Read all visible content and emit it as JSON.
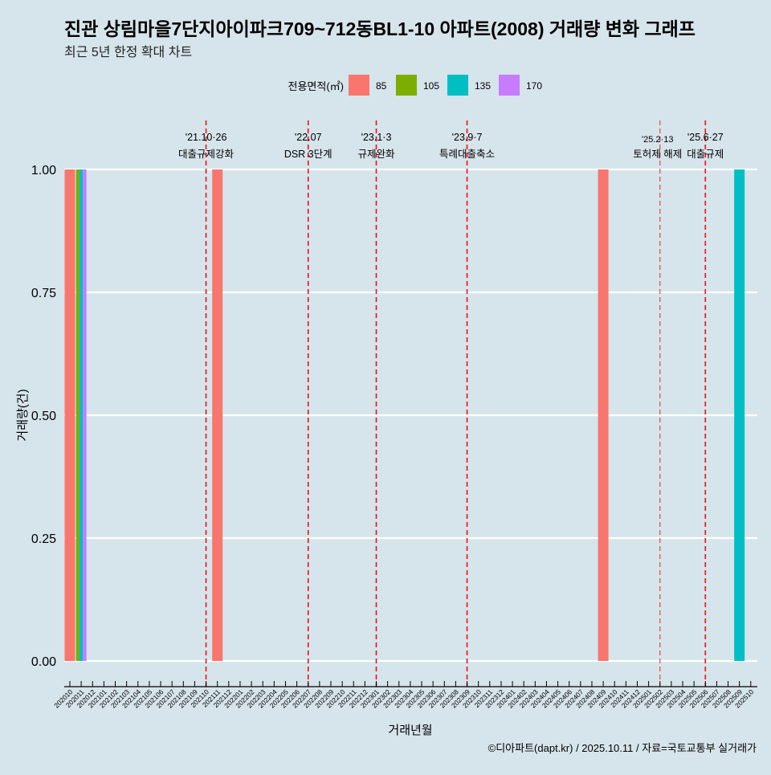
{
  "chart_data": {
    "type": "bar",
    "title": "진관 상림마을7단지아이파크709~712동BL1-10 아파트(2008) 거래량 변화 그래프",
    "subtitle": "최근 5년 한정 확대 차트",
    "xlabel": "거래년월",
    "ylabel": "거래량(건)",
    "ylim": [
      0,
      1
    ],
    "yticks": [
      "0.00",
      "0.25",
      "0.50",
      "0.75",
      "1.00"
    ],
    "legend": {
      "title": "전용면적(㎡)",
      "position": "top",
      "entries": [
        {
          "label": "85",
          "color": "#f8766d"
        },
        {
          "label": "105",
          "color": "#7cae00"
        },
        {
          "label": "135",
          "color": "#00bfc4"
        },
        {
          "label": "170",
          "color": "#c77cff"
        }
      ]
    },
    "categories": [
      "202010",
      "202011",
      "202012",
      "202101",
      "202102",
      "202103",
      "202104",
      "202105",
      "202106",
      "202107",
      "202108",
      "202109",
      "202110",
      "202111",
      "202112",
      "202201",
      "202202",
      "202203",
      "202204",
      "202205",
      "202206",
      "202207",
      "202208",
      "202209",
      "202210",
      "202211",
      "202212",
      "202301",
      "202302",
      "202303",
      "202304",
      "202305",
      "202306",
      "202307",
      "202308",
      "202309",
      "202310",
      "202311",
      "202312",
      "202401",
      "202402",
      "202403",
      "202404",
      "202405",
      "202406",
      "202407",
      "202408",
      "202409",
      "202410",
      "202411",
      "202412",
      "202501",
      "202502",
      "202503",
      "202504",
      "202505",
      "202506",
      "202507",
      "202508",
      "202509",
      "202510"
    ],
    "bars": [
      {
        "month": "202010",
        "area": "85",
        "value": 1
      },
      {
        "month": "202011",
        "area": "105",
        "value": 1
      },
      {
        "month": "202011",
        "area": "135",
        "value": 1
      },
      {
        "month": "202011",
        "area": "170",
        "value": 1
      },
      {
        "month": "202111",
        "area": "85",
        "value": 1
      },
      {
        "month": "202409",
        "area": "85",
        "value": 1
      },
      {
        "month": "202509",
        "area": "135",
        "value": 1
      }
    ],
    "annotations": [
      {
        "month": "202110",
        "date": "'21.10·26",
        "label": "대출규제강화"
      },
      {
        "month": "202207",
        "date": "'22.07",
        "label": "DSR 3단계"
      },
      {
        "month": "202301",
        "date": "'23.1·3",
        "label": "규제완화"
      },
      {
        "month": "202309",
        "date": "'23.9·7",
        "label": "특례대출축소"
      },
      {
        "month": "202502",
        "date": "'25.2·13",
        "label": "토허제 해제",
        "minor": true
      },
      {
        "month": "202506",
        "date": "'25.6·27",
        "label": "대출규제"
      }
    ]
  },
  "caption": "©디아파트(dapt.kr) / 2025.10.11 / 자료=국토교통부 실거래가"
}
